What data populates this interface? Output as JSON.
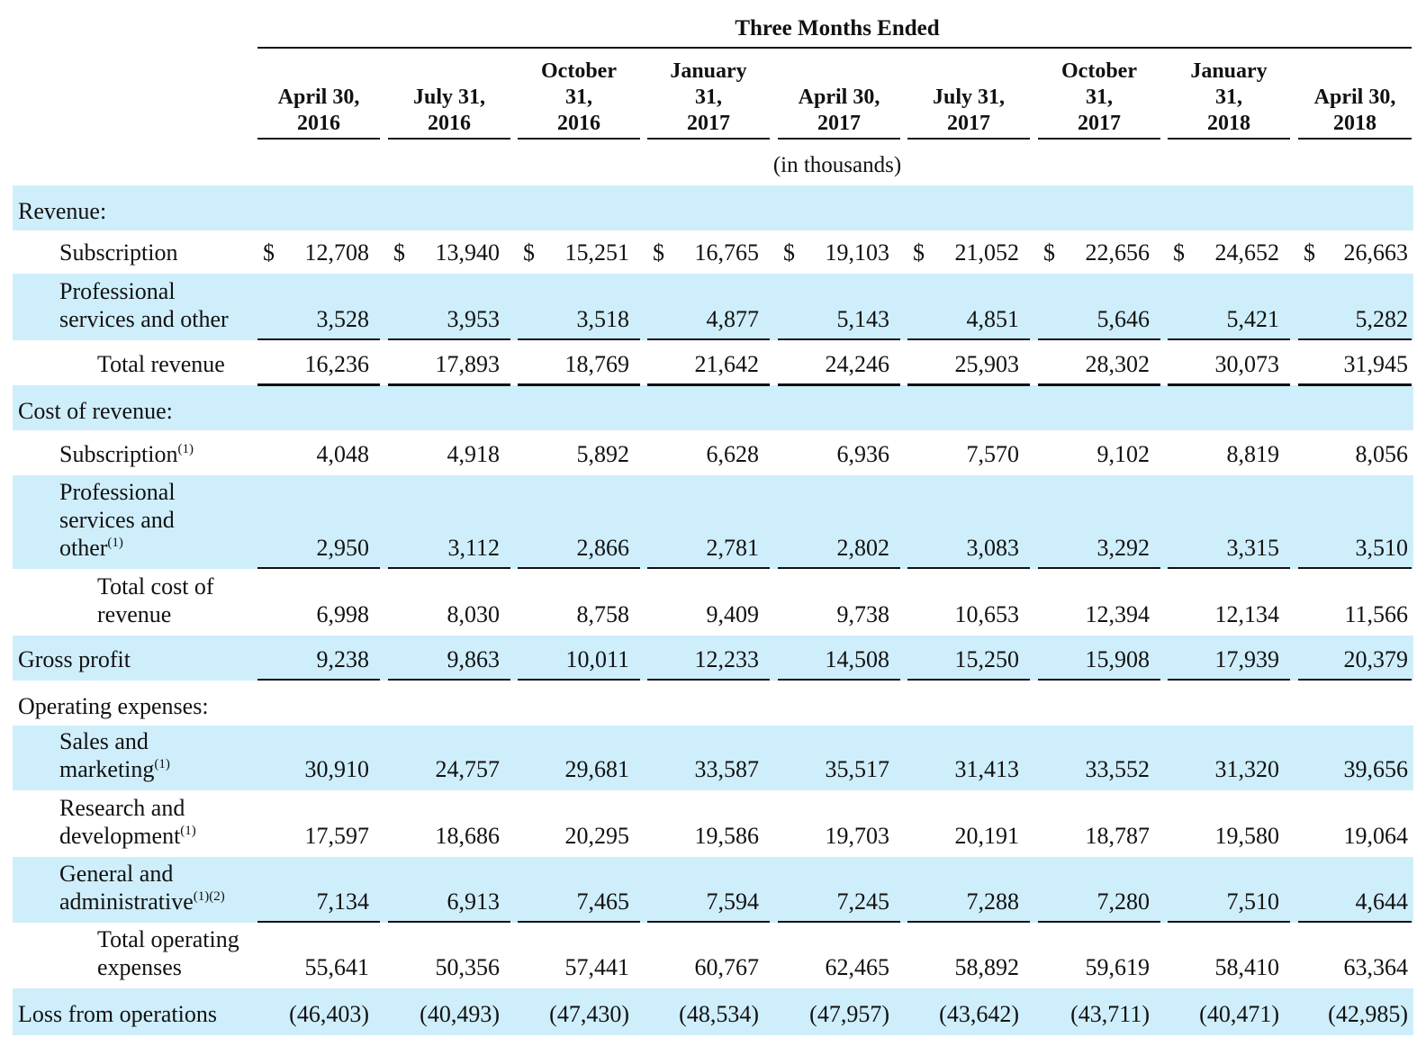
{
  "header": {
    "period_title": "Three Months Ended",
    "columns": [
      "April 30,\n2016",
      "July 31,\n2016",
      "October\n31,\n2016",
      "January\n31,\n2017",
      "April 30,\n2017",
      "July 31,\n2017",
      "October\n31,\n2017",
      "January\n31,\n2018",
      "April 30,\n2018"
    ],
    "unit_note": "(in thousands)"
  },
  "currency_symbol": "$",
  "rows": [
    {
      "label": "Revenue:",
      "indent": 0,
      "band": true,
      "values": []
    },
    {
      "label": "Subscription",
      "indent": 1,
      "band": false,
      "currency": true,
      "values": [
        "12,708",
        "13,940",
        "15,251",
        "16,765",
        "19,103",
        "21,052",
        "22,656",
        "24,652",
        "26,663"
      ]
    },
    {
      "label": "Professional\nservices and other",
      "indent": 1,
      "band": true,
      "rule_below": true,
      "values": [
        "3,528",
        "3,953",
        "3,518",
        "4,877",
        "5,143",
        "4,851",
        "5,646",
        "5,421",
        "5,282"
      ]
    },
    {
      "label": "Total revenue",
      "indent": 2,
      "band": false,
      "rule_below": true,
      "values": [
        "16,236",
        "17,893",
        "18,769",
        "21,642",
        "24,246",
        "25,903",
        "28,302",
        "30,073",
        "31,945"
      ]
    },
    {
      "label": "Cost of revenue:",
      "indent": 0,
      "band": true,
      "values": []
    },
    {
      "label": "Subscription",
      "sup": "(1)",
      "indent": 1,
      "band": false,
      "values": [
        "4,048",
        "4,918",
        "5,892",
        "6,628",
        "6,936",
        "7,570",
        "9,102",
        "8,819",
        "8,056"
      ]
    },
    {
      "label": "Professional\nservices and\nother",
      "sup": "(1)",
      "indent": 1,
      "band": true,
      "rule_below": true,
      "values": [
        "2,950",
        "3,112",
        "2,866",
        "2,781",
        "2,802",
        "3,083",
        "3,292",
        "3,315",
        "3,510"
      ]
    },
    {
      "label": "Total cost of\nrevenue",
      "indent": 2,
      "band": false,
      "values": [
        "6,998",
        "8,030",
        "8,758",
        "9,409",
        "9,738",
        "10,653",
        "12,394",
        "12,134",
        "11,566"
      ]
    },
    {
      "label": "Gross profit",
      "indent": 0,
      "band": true,
      "rule_below": true,
      "values": [
        "9,238",
        "9,863",
        "10,011",
        "12,233",
        "14,508",
        "15,250",
        "15,908",
        "17,939",
        "20,379"
      ]
    },
    {
      "label": "Operating expenses:",
      "indent": 0,
      "band": false,
      "values": []
    },
    {
      "label": "Sales and\nmarketing",
      "sup": "(1)",
      "indent": 1,
      "band": true,
      "values": [
        "30,910",
        "24,757",
        "29,681",
        "33,587",
        "35,517",
        "31,413",
        "33,552",
        "31,320",
        "39,656"
      ]
    },
    {
      "label": "Research and\ndevelopment",
      "sup": "(1)",
      "indent": 1,
      "band": false,
      "values": [
        "17,597",
        "18,686",
        "20,295",
        "19,586",
        "19,703",
        "20,191",
        "18,787",
        "19,580",
        "19,064"
      ]
    },
    {
      "label": "General and\nadministrative",
      "sup": "(1)(2)",
      "indent": 1,
      "band": true,
      "rule_below": true,
      "values": [
        "7,134",
        "6,913",
        "7,465",
        "7,594",
        "7,245",
        "7,288",
        "7,280",
        "7,510",
        "4,644"
      ]
    },
    {
      "label": "Total operating\nexpenses",
      "indent": 2,
      "band": false,
      "values": [
        "55,641",
        "50,356",
        "57,441",
        "60,767",
        "62,465",
        "58,892",
        "59,619",
        "58,410",
        "63,364"
      ]
    },
    {
      "label": "Loss from operations",
      "indent": 0,
      "band": true,
      "values": [
        "(46,403)",
        "(40,493)",
        "(47,430)",
        "(48,534)",
        "(47,957)",
        "(43,642)",
        "(43,711)",
        "(40,471)",
        "(42,985)"
      ]
    }
  ]
}
